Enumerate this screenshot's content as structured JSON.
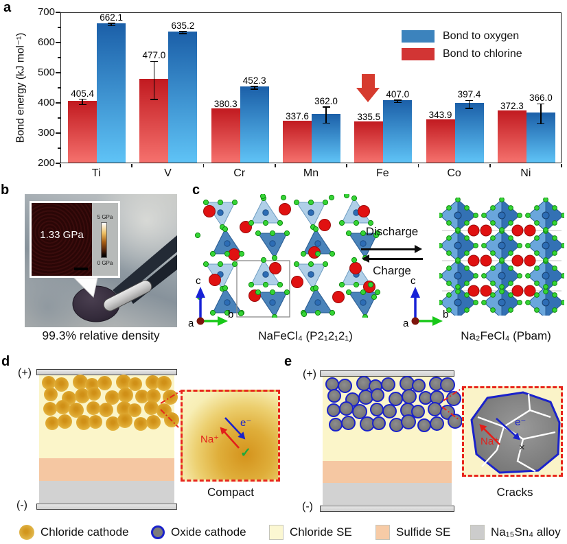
{
  "panel_labels": {
    "a": "a",
    "b": "b",
    "c": "c",
    "d": "d",
    "e": "e"
  },
  "chart_data": {
    "type": "bar",
    "title": "",
    "xlabel": "",
    "ylabel": "Bond energy (kJ mol⁻¹)",
    "ylim": [
      200,
      700
    ],
    "yticks": [
      200,
      300,
      400,
      500,
      600,
      700
    ],
    "categories": [
      "Ti",
      "V",
      "Cr",
      "Mn",
      "Fe",
      "Co",
      "Ni"
    ],
    "series": [
      {
        "name": "Bond to chlorine",
        "color_top": "#c11a20",
        "color_bottom": "#f5716d",
        "values": [
          405.4,
          477.0,
          380.3,
          337.6,
          335.5,
          343.9,
          372.3
        ],
        "errors": [
          9,
          63,
          0,
          0,
          0,
          0,
          0
        ]
      },
      {
        "name": "Bond to oxygen",
        "color_top": "#1b5fa8",
        "color_bottom": "#5fc3f6",
        "values": [
          662.1,
          635.2,
          452.3,
          362.0,
          407.0,
          397.4,
          366.0
        ],
        "errors": [
          4,
          4,
          5,
          27,
          4,
          13,
          33
        ]
      }
    ],
    "legend": [
      {
        "label": "Bond to oxygen",
        "color": "#3c83bd"
      },
      {
        "label": "Bond to chlorine",
        "color": "#d23534"
      }
    ],
    "legend_position": "upper right",
    "grid": false,
    "annotation": {
      "type": "down-arrow",
      "category": "Fe",
      "series": "Bond to chlorine",
      "color": "#d63b2e"
    }
  },
  "panel_b": {
    "inset_value": "1.33 GPa",
    "colorbar_top": "5 GPa",
    "colorbar_bottom": "0 GPa",
    "caption": "99.3% relative density"
  },
  "panel_c": {
    "axis_up": "c",
    "axis_right": "b",
    "axis_origin": "a",
    "forward": "Discharge",
    "reverse": "Charge",
    "left_label": "NaFeCl₄ (P2₁2₁2₁)",
    "right_label": "Na₂FeCl₄ (Pbam)"
  },
  "panel_d": {
    "positive": "(+)",
    "negative": "(-)",
    "ion": "Na⁺",
    "electron": "e⁻",
    "mark": "✓",
    "caption": "Compact"
  },
  "panel_e": {
    "positive": "(+)",
    "negative": "(-)",
    "ion": "Na⁺",
    "electron": "e⁻",
    "mark": "×",
    "caption": "Cracks"
  },
  "bottom_legend": [
    {
      "label": "Chloride cathode",
      "swatch": "gold-circle"
    },
    {
      "label": "Oxide cathode",
      "swatch": "oxide-circle"
    },
    {
      "label": "Chloride SE",
      "swatch": "square",
      "color": "#fbf7d2"
    },
    {
      "label": "Sulfide SE",
      "swatch": "square",
      "color": "#f7cba6"
    },
    {
      "label": "Na₁₅Sn₄ alloy",
      "swatch": "square",
      "color": "#cccccc"
    }
  ],
  "colors": {
    "chloride_se": "#fbf5c9",
    "sulfide_se": "#f5c7a2",
    "alloy": "#d2d2d2",
    "oxide_particle_border": "#1a22cb",
    "inset_border": "#e8251c"
  }
}
